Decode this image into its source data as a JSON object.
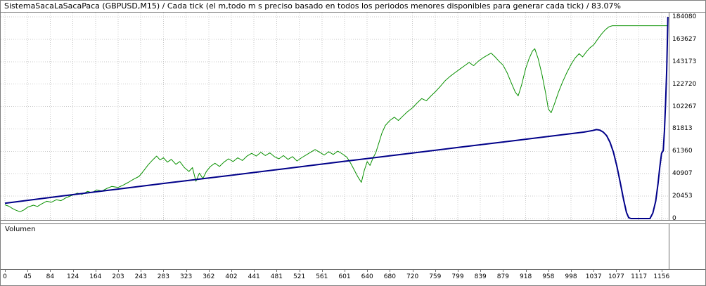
{
  "header": {
    "title": "SistemaSacaLaSacaPaca (GBPUSD,M15) / Cada tick (el m,todo m s preciso basado en todos los periodos menores disponibles para generar cada tick)  / 83.07%"
  },
  "volume_panel": {
    "label": "Volumen"
  },
  "chart_data": {
    "type": "line",
    "title": "",
    "xlabel": "",
    "ylabel": "",
    "grid": true,
    "legend": "none",
    "x_ticks": [
      0,
      45,
      84,
      124,
      164,
      203,
      243,
      283,
      323,
      362,
      402,
      441,
      481,
      521,
      561,
      601,
      640,
      680,
      720,
      759,
      799,
      839,
      879,
      918,
      958,
      998,
      1037,
      1077,
      1117,
      1156
    ],
    "y_ticks": [
      184080,
      163627,
      143173,
      122720,
      102267,
      81813,
      61360,
      40907,
      20453,
      0
    ],
    "x_range": [
      0,
      1168
    ],
    "y_range": [
      0,
      184080
    ],
    "series": [
      {
        "name": "equity-green",
        "color": "#089000",
        "width": 1,
        "points": [
          [
            0,
            12500
          ],
          [
            8,
            11200
          ],
          [
            15,
            9200
          ],
          [
            22,
            7600
          ],
          [
            30,
            6200
          ],
          [
            38,
            7900
          ],
          [
            45,
            10300
          ],
          [
            55,
            12200
          ],
          [
            62,
            11000
          ],
          [
            70,
            13600
          ],
          [
            78,
            15800
          ],
          [
            86,
            14900
          ],
          [
            95,
            17200
          ],
          [
            103,
            16300
          ],
          [
            112,
            19000
          ],
          [
            124,
            21500
          ],
          [
            132,
            23200
          ],
          [
            140,
            22000
          ],
          [
            150,
            24800
          ],
          [
            158,
            23600
          ],
          [
            166,
            26200
          ],
          [
            175,
            25000
          ],
          [
            184,
            27600
          ],
          [
            192,
            29300
          ],
          [
            203,
            28400
          ],
          [
            212,
            30500
          ],
          [
            221,
            33000
          ],
          [
            230,
            35800
          ],
          [
            240,
            38500
          ],
          [
            248,
            43500
          ],
          [
            256,
            49000
          ],
          [
            264,
            53500
          ],
          [
            271,
            57000
          ],
          [
            277,
            53500
          ],
          [
            283,
            55500
          ],
          [
            290,
            51500
          ],
          [
            297,
            54000
          ],
          [
            305,
            49500
          ],
          [
            312,
            52000
          ],
          [
            320,
            46500
          ],
          [
            328,
            43000
          ],
          [
            334,
            46500
          ],
          [
            340,
            34000
          ],
          [
            346,
            41500
          ],
          [
            352,
            36500
          ],
          [
            358,
            43000
          ],
          [
            365,
            47500
          ],
          [
            373,
            50500
          ],
          [
            381,
            47500
          ],
          [
            389,
            51500
          ],
          [
            397,
            54500
          ],
          [
            405,
            52000
          ],
          [
            413,
            55500
          ],
          [
            421,
            53000
          ],
          [
            429,
            57000
          ],
          [
            437,
            59500
          ],
          [
            445,
            57000
          ],
          [
            453,
            60500
          ],
          [
            461,
            57500
          ],
          [
            469,
            60000
          ],
          [
            477,
            56500
          ],
          [
            485,
            54500
          ],
          [
            493,
            57500
          ],
          [
            501,
            54000
          ],
          [
            509,
            56500
          ],
          [
            517,
            52500
          ],
          [
            525,
            55500
          ],
          [
            533,
            58000
          ],
          [
            541,
            60500
          ],
          [
            549,
            63000
          ],
          [
            557,
            60500
          ],
          [
            565,
            58000
          ],
          [
            573,
            61000
          ],
          [
            581,
            58500
          ],
          [
            589,
            61500
          ],
          [
            597,
            59000
          ],
          [
            605,
            56000
          ],
          [
            612,
            50000
          ],
          [
            618,
            44000
          ],
          [
            624,
            38000
          ],
          [
            630,
            33000
          ],
          [
            635,
            44000
          ],
          [
            640,
            52000
          ],
          [
            645,
            48500
          ],
          [
            650,
            55000
          ],
          [
            655,
            60000
          ],
          [
            660,
            68000
          ],
          [
            666,
            78000
          ],
          [
            672,
            85000
          ],
          [
            680,
            89500
          ],
          [
            688,
            92500
          ],
          [
            695,
            89500
          ],
          [
            703,
            93500
          ],
          [
            711,
            97500
          ],
          [
            720,
            101000
          ],
          [
            728,
            105500
          ],
          [
            736,
            109500
          ],
          [
            744,
            107500
          ],
          [
            752,
            112000
          ],
          [
            759,
            115500
          ],
          [
            768,
            120500
          ],
          [
            777,
            126000
          ],
          [
            786,
            130000
          ],
          [
            795,
            133500
          ],
          [
            803,
            136500
          ],
          [
            811,
            139500
          ],
          [
            819,
            142500
          ],
          [
            827,
            139500
          ],
          [
            835,
            143500
          ],
          [
            843,
            146500
          ],
          [
            851,
            149000
          ],
          [
            858,
            151000
          ],
          [
            865,
            147500
          ],
          [
            872,
            143500
          ],
          [
            879,
            140000
          ],
          [
            886,
            133000
          ],
          [
            893,
            124000
          ],
          [
            900,
            115500
          ],
          [
            905,
            112000
          ],
          [
            911,
            122000
          ],
          [
            918,
            137000
          ],
          [
            924,
            146000
          ],
          [
            930,
            153000
          ],
          [
            934,
            155000
          ],
          [
            940,
            146000
          ],
          [
            947,
            131000
          ],
          [
            953,
            115000
          ],
          [
            958,
            100000
          ],
          [
            963,
            96500
          ],
          [
            969,
            105000
          ],
          [
            976,
            115500
          ],
          [
            983,
            124500
          ],
          [
            990,
            132500
          ],
          [
            998,
            140500
          ],
          [
            1005,
            146500
          ],
          [
            1012,
            150500
          ],
          [
            1018,
            147500
          ],
          [
            1025,
            152500
          ],
          [
            1031,
            156000
          ],
          [
            1037,
            158500
          ],
          [
            1044,
            163500
          ],
          [
            1051,
            168500
          ],
          [
            1058,
            172500
          ],
          [
            1064,
            175000
          ],
          [
            1070,
            176000
          ],
          [
            1090,
            176000
          ],
          [
            1130,
            176000
          ],
          [
            1167,
            176000
          ]
        ]
      },
      {
        "name": "balance-blue",
        "color": "#000089",
        "width": 2,
        "points": [
          [
            0,
            14000
          ],
          [
            100,
            20300
          ],
          [
            200,
            26700
          ],
          [
            300,
            33100
          ],
          [
            400,
            39400
          ],
          [
            500,
            45800
          ],
          [
            600,
            52200
          ],
          [
            700,
            58500
          ],
          [
            800,
            64900
          ],
          [
            900,
            71200
          ],
          [
            1000,
            77600
          ],
          [
            1020,
            78900
          ],
          [
            1035,
            80300
          ],
          [
            1042,
            81200
          ],
          [
            1048,
            80700
          ],
          [
            1054,
            78900
          ],
          [
            1060,
            75600
          ],
          [
            1066,
            69600
          ],
          [
            1072,
            60500
          ],
          [
            1078,
            48000
          ],
          [
            1084,
            33000
          ],
          [
            1090,
            17000
          ],
          [
            1095,
            5500
          ],
          [
            1099,
            800
          ],
          [
            1103,
            0
          ],
          [
            1136,
            0
          ],
          [
            1141,
            5000
          ],
          [
            1146,
            16000
          ],
          [
            1150,
            32000
          ],
          [
            1153,
            47000
          ],
          [
            1156,
            59500
          ],
          [
            1159,
            62000
          ],
          [
            1161,
            80000
          ],
          [
            1163,
            105000
          ],
          [
            1165,
            135000
          ],
          [
            1166,
            160000
          ],
          [
            1167,
            184080
          ]
        ]
      }
    ],
    "style": {
      "grid_color": "#c9c9c9",
      "text_color": "#000000",
      "background": "#ffffff"
    }
  }
}
